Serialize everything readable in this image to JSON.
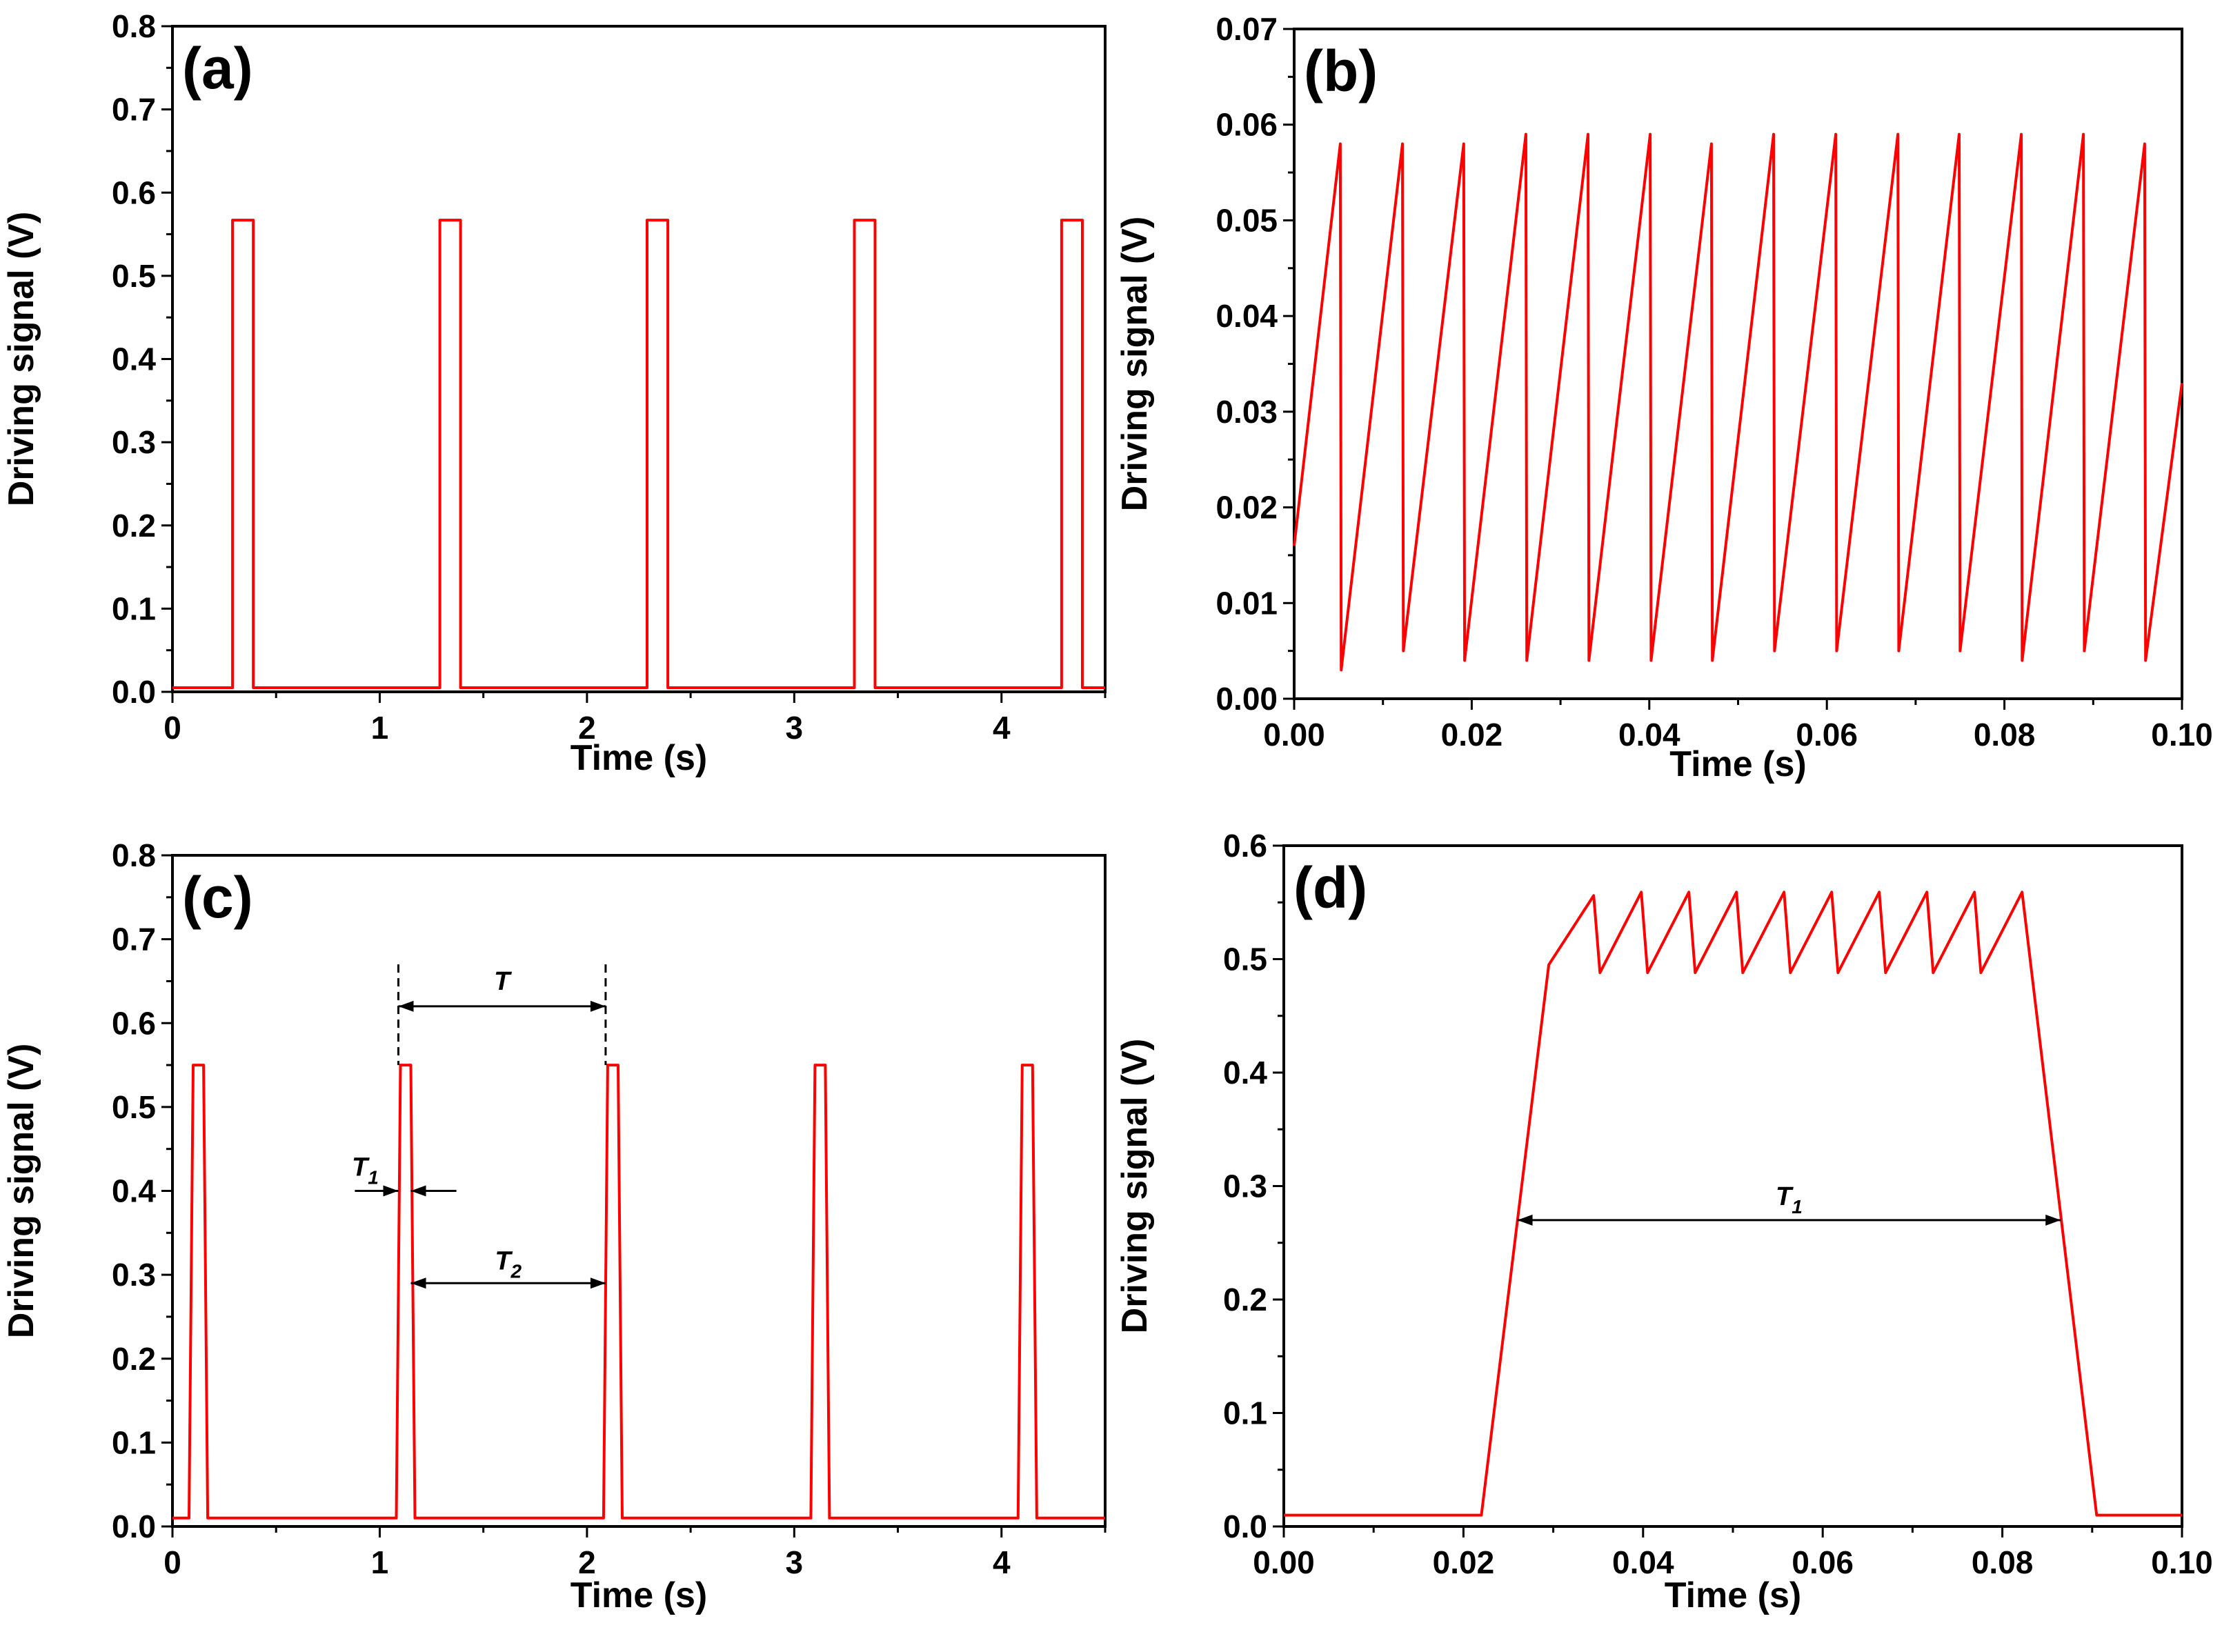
{
  "chart_data": [
    {
      "id": "a",
      "type": "line",
      "panel_label": "(a)",
      "xlabel": "Time (s)",
      "ylabel": "Driving signal (V)",
      "xlim": [
        0,
        4.5
      ],
      "ylim": [
        0,
        0.8
      ],
      "xticks": [
        0,
        1,
        2,
        3,
        4
      ],
      "xtick_labels": [
        "0",
        "1",
        "2",
        "3",
        "4"
      ],
      "yticks": [
        0,
        0.1,
        0.2,
        0.3,
        0.4,
        0.5,
        0.6,
        0.7,
        0.8
      ],
      "ytick_labels": [
        "0.0",
        "0.1",
        "0.2",
        "0.3",
        "0.4",
        "0.5",
        "0.6",
        "0.7",
        "0.8"
      ],
      "series": [
        {
          "name": "driving signal",
          "color": "#ff0000",
          "x": [
            0,
            0.29,
            0.29,
            0.39,
            0.39,
            1.29,
            1.29,
            1.39,
            1.39,
            2.29,
            2.29,
            2.39,
            2.39,
            3.29,
            3.29,
            3.39,
            3.39,
            4.29,
            4.29,
            4.39,
            4.39,
            4.5
          ],
          "y": [
            0.005,
            0.005,
            0.567,
            0.567,
            0.005,
            0.005,
            0.567,
            0.567,
            0.005,
            0.005,
            0.567,
            0.567,
            0.005,
            0.005,
            0.567,
            0.567,
            0.005,
            0.005,
            0.567,
            0.567,
            0.005,
            0.005
          ]
        }
      ]
    },
    {
      "id": "b",
      "type": "line",
      "panel_label": "(b)",
      "xlabel": "Time (s)",
      "ylabel": "Driving signal (V)",
      "xlim": [
        0,
        0.1
      ],
      "ylim": [
        0,
        0.07
      ],
      "xticks": [
        0,
        0.02,
        0.04,
        0.06,
        0.08,
        0.1
      ],
      "xtick_labels": [
        "0.00",
        "0.02",
        "0.04",
        "0.06",
        "0.08",
        "0.10"
      ],
      "yticks": [
        0,
        0.01,
        0.02,
        0.03,
        0.04,
        0.05,
        0.06,
        0.07
      ],
      "ytick_labels": [
        "0.00",
        "0.01",
        "0.02",
        "0.03",
        "0.04",
        "0.05",
        "0.06",
        "0.07"
      ],
      "series": [
        {
          "name": "driving signal",
          "color": "#ff0000",
          "x": [
            0,
            0.0052,
            0.0053,
            0.0122,
            0.0123,
            0.0191,
            0.0192,
            0.0261,
            0.0262,
            0.0331,
            0.0332,
            0.0401,
            0.0402,
            0.047,
            0.0471,
            0.054,
            0.0541,
            0.061,
            0.0611,
            0.068,
            0.0681,
            0.0749,
            0.075,
            0.0819,
            0.082,
            0.0889,
            0.089,
            0.0958,
            0.0959,
            0.1
          ],
          "y": [
            0.016,
            0.058,
            0.003,
            0.058,
            0.005,
            0.058,
            0.004,
            0.059,
            0.004,
            0.059,
            0.004,
            0.059,
            0.004,
            0.058,
            0.004,
            0.059,
            0.005,
            0.059,
            0.005,
            0.059,
            0.005,
            0.059,
            0.005,
            0.059,
            0.004,
            0.059,
            0.005,
            0.058,
            0.004,
            0.033
          ]
        }
      ]
    },
    {
      "id": "c",
      "type": "line",
      "panel_label": "(c)",
      "xlabel": "Time (s)",
      "ylabel": "Driving signal (V)",
      "xlim": [
        0,
        4.5
      ],
      "ylim": [
        0,
        0.8
      ],
      "xticks": [
        0,
        1,
        2,
        3,
        4
      ],
      "xtick_labels": [
        "0",
        "1",
        "2",
        "3",
        "4"
      ],
      "yticks": [
        0,
        0.1,
        0.2,
        0.3,
        0.4,
        0.5,
        0.6,
        0.7,
        0.8
      ],
      "ytick_labels": [
        "0.0",
        "0.1",
        "0.2",
        "0.3",
        "0.4",
        "0.5",
        "0.6",
        "0.7",
        "0.8"
      ],
      "series": [
        {
          "name": "driving signal",
          "color": "#ff0000",
          "x": [
            0,
            0.08,
            0.1,
            0.15,
            0.17,
            1.08,
            1.1,
            1.15,
            1.17,
            2.08,
            2.1,
            2.15,
            2.17,
            3.08,
            3.1,
            3.15,
            3.17,
            4.08,
            4.1,
            4.15,
            4.17,
            4.5
          ],
          "y": [
            0.01,
            0.01,
            0.55,
            0.55,
            0.01,
            0.01,
            0.55,
            0.55,
            0.01,
            0.01,
            0.55,
            0.55,
            0.01,
            0.01,
            0.55,
            0.55,
            0.01,
            0.01,
            0.55,
            0.55,
            0.01,
            0.01
          ]
        }
      ],
      "annotations": {
        "period": "T",
        "pulse_width": "T",
        "pulse_width_sub": "1",
        "gap": "T",
        "gap_sub": "2",
        "period_from": 1.09,
        "period_to": 2.09,
        "period_y": 0.62,
        "dash_top": 0.67,
        "dash_bottom": 0.55,
        "t1_y": 0.4,
        "t1_left_from": 0.88,
        "t1_left_to": 1.09,
        "t1_right_from": 1.37,
        "t1_right_to": 1.15,
        "t2_from": 1.15,
        "t2_to": 2.09,
        "t2_y": 0.29
      }
    },
    {
      "id": "d",
      "type": "line",
      "panel_label": "(d)",
      "xlabel": "Time (s)",
      "ylabel": "Driving signal (V)",
      "xlim": [
        0,
        0.1
      ],
      "ylim": [
        0,
        0.6
      ],
      "xticks": [
        0,
        0.02,
        0.04,
        0.06,
        0.08,
        0.1
      ],
      "xtick_labels": [
        "0.00",
        "0.02",
        "0.04",
        "0.06",
        "0.08",
        "0.10"
      ],
      "yticks": [
        0,
        0.1,
        0.2,
        0.3,
        0.4,
        0.5,
        0.6
      ],
      "ytick_labels": [
        "0.0",
        "0.1",
        "0.2",
        "0.3",
        "0.4",
        "0.5",
        "0.6"
      ],
      "series": [
        {
          "name": "driving signal",
          "color": "#ff0000",
          "x": [
            0,
            0.022,
            0.0295,
            0.0345,
            0.0352,
            0.0398,
            0.0405,
            0.0451,
            0.0458,
            0.0504,
            0.0511,
            0.0557,
            0.0564,
            0.061,
            0.0617,
            0.0663,
            0.067,
            0.0716,
            0.0723,
            0.0769,
            0.0776,
            0.0822,
            0.0905,
            0.1
          ],
          "y": [
            0.01,
            0.01,
            0.495,
            0.556,
            0.488,
            0.559,
            0.488,
            0.559,
            0.488,
            0.559,
            0.488,
            0.559,
            0.488,
            0.559,
            0.488,
            0.559,
            0.488,
            0.559,
            0.488,
            0.559,
            0.488,
            0.559,
            0.01,
            0.01
          ]
        }
      ],
      "annotations": {
        "width": "T",
        "width_sub": "1",
        "from": 0.026,
        "to": 0.0865,
        "y": 0.27
      }
    }
  ]
}
